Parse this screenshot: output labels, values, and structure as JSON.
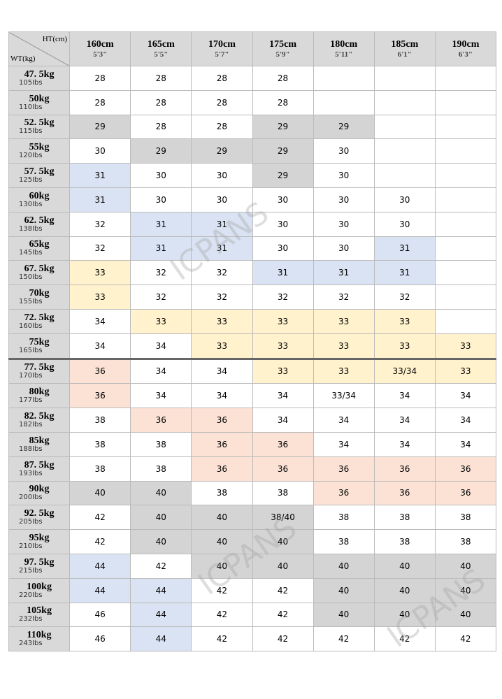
{
  "header": {
    "corner_top": "HT(cm)",
    "corner_bottom": "WT(kg)",
    "columns": [
      {
        "cm": "160cm",
        "ft": "5'3\""
      },
      {
        "cm": "165cm",
        "ft": "5'5\""
      },
      {
        "cm": "170cm",
        "ft": "5'7\""
      },
      {
        "cm": "175cm",
        "ft": "5'9\""
      },
      {
        "cm": "180cm",
        "ft": "5'11\""
      },
      {
        "cm": "185cm",
        "ft": "6'1\""
      },
      {
        "cm": "190cm",
        "ft": "6'3\""
      }
    ]
  },
  "palette": {
    "gray": "#d4d4d4",
    "blue": "#dae3f3",
    "yellow": "#fff2cc",
    "peach": "#fbe2d5"
  },
  "watermark": "ICPANS",
  "rows": [
    {
      "kg": "47. 5kg",
      "lbs": "105Ibs",
      "sizes": [
        "28",
        "28",
        "28",
        "28",
        null,
        null,
        null
      ],
      "fills": [
        null,
        null,
        null,
        null,
        null,
        null,
        null
      ]
    },
    {
      "kg": "50kg",
      "lbs": "110Ibs",
      "sizes": [
        "28",
        "28",
        "28",
        "28",
        null,
        null,
        null
      ],
      "fills": [
        null,
        null,
        null,
        null,
        null,
        null,
        null
      ]
    },
    {
      "kg": "52. 5kg",
      "lbs": "115Ibs",
      "sizes": [
        "29",
        "28",
        "28",
        "29",
        "29",
        null,
        null
      ],
      "fills": [
        "gray",
        null,
        null,
        "gray",
        "gray",
        null,
        null
      ]
    },
    {
      "kg": "55kg",
      "lbs": "120Ibs",
      "sizes": [
        "30",
        "29",
        "29",
        "29",
        "30",
        null,
        null
      ],
      "fills": [
        null,
        "gray",
        "gray",
        "gray",
        null,
        null,
        null
      ]
    },
    {
      "kg": "57. 5kg",
      "lbs": "125Ibs",
      "sizes": [
        "31",
        "30",
        "30",
        "29",
        "30",
        null,
        null
      ],
      "fills": [
        "blue",
        null,
        null,
        "gray",
        null,
        null,
        null
      ]
    },
    {
      "kg": "60kg",
      "lbs": "130Ibs",
      "sizes": [
        "31",
        "30",
        "30",
        "30",
        "30",
        "30",
        null
      ],
      "fills": [
        "blue",
        null,
        null,
        null,
        null,
        null,
        null
      ]
    },
    {
      "kg": "62. 5kg",
      "lbs": "138Ibs",
      "sizes": [
        "32",
        "31",
        "31",
        "30",
        "30",
        "30",
        null
      ],
      "fills": [
        null,
        "blue",
        "blue",
        null,
        null,
        null,
        null
      ]
    },
    {
      "kg": "65kg",
      "lbs": "145Ibs",
      "sizes": [
        "32",
        "31",
        "31",
        "30",
        "30",
        "31",
        null
      ],
      "fills": [
        null,
        "blue",
        "blue",
        null,
        null,
        "blue",
        null
      ]
    },
    {
      "kg": "67. 5kg",
      "lbs": "150Ibs",
      "sizes": [
        "33",
        "32",
        "32",
        "31",
        "31",
        "31",
        null
      ],
      "fills": [
        "yellow",
        null,
        null,
        "blue",
        "blue",
        "blue",
        null
      ]
    },
    {
      "kg": "70kg",
      "lbs": "155Ibs",
      "sizes": [
        "33",
        "32",
        "32",
        "32",
        "32",
        "32",
        null
      ],
      "fills": [
        "yellow",
        null,
        null,
        null,
        null,
        null,
        null
      ]
    },
    {
      "kg": "72. 5kg",
      "lbs": "160Ibs",
      "sizes": [
        "34",
        "33",
        "33",
        "33",
        "33",
        "33",
        null
      ],
      "fills": [
        null,
        "yellow",
        "yellow",
        "yellow",
        "yellow",
        "yellow",
        null
      ]
    },
    {
      "kg": "75kg",
      "lbs": "165Ibs",
      "sizes": [
        "34",
        "34",
        "33",
        "33",
        "33",
        "33",
        "33"
      ],
      "fills": [
        null,
        null,
        "yellow",
        "yellow",
        "yellow",
        "yellow",
        "yellow"
      ]
    },
    {
      "kg": "77. 5kg",
      "lbs": "170Ibs",
      "sizes": [
        "36",
        "34",
        "34",
        "33",
        "33",
        "33/34",
        "33"
      ],
      "fills": [
        "peach",
        null,
        null,
        "yellow",
        "yellow",
        "yellow",
        "yellow"
      ]
    },
    {
      "kg": "80kg",
      "lbs": "177Ibs",
      "sizes": [
        "36",
        "34",
        "34",
        "34",
        "33/34",
        "34",
        "34"
      ],
      "fills": [
        "peach",
        null,
        null,
        null,
        null,
        null,
        null
      ]
    },
    {
      "kg": "82. 5kg",
      "lbs": "182Ibs",
      "sizes": [
        "38",
        "36",
        "36",
        "34",
        "34",
        "34",
        "34"
      ],
      "fills": [
        null,
        "peach",
        "peach",
        null,
        null,
        null,
        null
      ]
    },
    {
      "kg": "85kg",
      "lbs": "188Ibs",
      "sizes": [
        "38",
        "38",
        "36",
        "36",
        "34",
        "34",
        "34"
      ],
      "fills": [
        null,
        null,
        "peach",
        "peach",
        null,
        null,
        null
      ]
    },
    {
      "kg": "87. 5kg",
      "lbs": "193Ibs",
      "sizes": [
        "38",
        "38",
        "36",
        "36",
        "36",
        "36",
        "36"
      ],
      "fills": [
        null,
        null,
        "peach",
        "peach",
        "peach",
        "peach",
        "peach"
      ]
    },
    {
      "kg": "90kg",
      "lbs": "200Ibs",
      "sizes": [
        "40",
        "40",
        "38",
        "38",
        "36",
        "36",
        "36"
      ],
      "fills": [
        "gray",
        "gray",
        null,
        null,
        "peach",
        "peach",
        "peach"
      ]
    },
    {
      "kg": "92. 5kg",
      "lbs": "205Ibs",
      "sizes": [
        "42",
        "40",
        "40",
        "38/40",
        "38",
        "38",
        "38"
      ],
      "fills": [
        null,
        "gray",
        "gray",
        "gray",
        null,
        null,
        null
      ]
    },
    {
      "kg": "95kg",
      "lbs": "210Ibs",
      "sizes": [
        "42",
        "40",
        "40",
        "40",
        "38",
        "38",
        "38"
      ],
      "fills": [
        null,
        "gray",
        "gray",
        "gray",
        null,
        null,
        null
      ]
    },
    {
      "kg": "97. 5kg",
      "lbs": "215Ibs",
      "sizes": [
        "44",
        "42",
        "40",
        "40",
        "40",
        "40",
        "40"
      ],
      "fills": [
        "blue",
        null,
        "gray",
        "gray",
        "gray",
        "gray",
        "gray"
      ]
    },
    {
      "kg": "100kg",
      "lbs": "220Ibs",
      "sizes": [
        "44",
        "44",
        "42",
        "42",
        "40",
        "40",
        "40"
      ],
      "fills": [
        "blue",
        "blue",
        null,
        null,
        "gray",
        "gray",
        "gray"
      ]
    },
    {
      "kg": "105kg",
      "lbs": "232Ibs",
      "sizes": [
        "46",
        "44",
        "42",
        "42",
        "40",
        "40",
        "40"
      ],
      "fills": [
        null,
        "blue",
        null,
        null,
        "gray",
        "gray",
        "gray"
      ]
    },
    {
      "kg": "110kg",
      "lbs": "243Ibs",
      "sizes": [
        "46",
        "44",
        "42",
        "42",
        "42",
        "42",
        "42"
      ],
      "fills": [
        null,
        "blue",
        null,
        null,
        null,
        null,
        null
      ]
    }
  ]
}
